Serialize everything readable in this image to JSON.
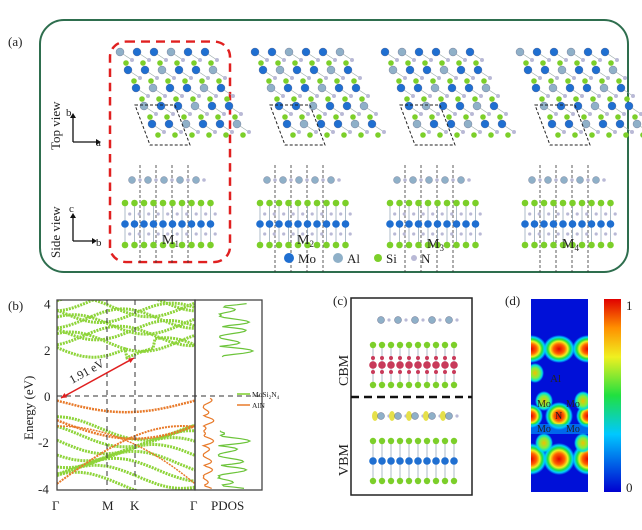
{
  "panel_a": {
    "label": "(a)",
    "top_view_label": "Top view",
    "side_view_label": "Side view",
    "top_axes": {
      "vertical": "b",
      "horizontal": "a"
    },
    "side_axes": {
      "vertical": "c",
      "horizontal": "b"
    },
    "models": [
      {
        "name": "M",
        "sub": "1",
        "highlighted": true
      },
      {
        "name": "M",
        "sub": "2",
        "highlighted": false
      },
      {
        "name": "M",
        "sub": "3",
        "highlighted": false
      },
      {
        "name": "M",
        "sub": "4",
        "highlighted": false
      }
    ],
    "legend": [
      {
        "label": "Mo",
        "color": "#1f6fd1"
      },
      {
        "label": "Al",
        "color": "#8fb0c8"
      },
      {
        "label": "Si",
        "color": "#7ccf2a"
      },
      {
        "label": "N",
        "color": "#b9b9d6"
      }
    ],
    "frame_color": "#2e6e4e",
    "highlight_color": "#e02020"
  },
  "panel_b": {
    "label": "(b)",
    "gap_annotation": "1.91 eV",
    "pdos_label": "PDOS",
    "legend_mosi_base": "MoSi",
    "legend_mosi_sub1": "2",
    "legend_mosi_mid": "N",
    "legend_mosi_sub2": "4",
    "legend_aln": "AlN"
  },
  "panel_c": {
    "label": "(c)",
    "cbm_label": "CBM",
    "vbm_label": "VBM"
  },
  "panel_d": {
    "label": "(d)",
    "atom_labels": [
      "Al",
      "Mo",
      "Mo",
      "N",
      "Mo",
      "Mo"
    ],
    "colorbar_max": "1",
    "colorbar_min": "0"
  },
  "chart_data": {
    "type": "line",
    "title": "",
    "ylabel": "Energy (eV)",
    "xlabel": "",
    "ylim": [
      -4,
      4
    ],
    "yticks": [
      "4",
      "2",
      "0",
      "-2",
      "-4"
    ],
    "xticks": [
      "Γ",
      "M",
      "K",
      "Γ"
    ],
    "band_gap_eV": 1.91,
    "fermi_level": 0,
    "series": [
      {
        "name": "MoSi2N4",
        "color": "#7ccf2a"
      },
      {
        "name": "AlN",
        "color": "#e87a2a"
      }
    ],
    "grid": false,
    "legend_position": "right"
  }
}
